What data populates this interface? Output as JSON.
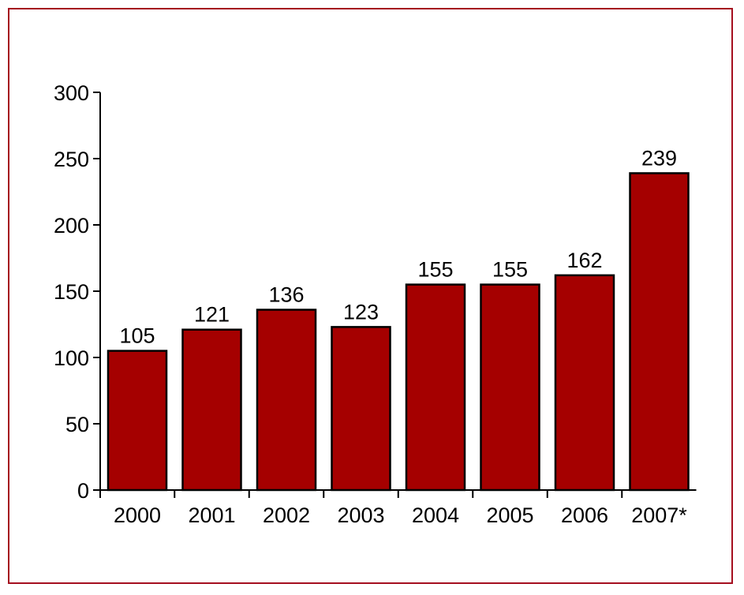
{
  "chart_data": {
    "type": "bar",
    "categories": [
      "2000",
      "2001",
      "2002",
      "2003",
      "2004",
      "2005",
      "2006",
      "2007*"
    ],
    "values": [
      105,
      121,
      136,
      123,
      155,
      155,
      162,
      239
    ],
    "value_labels": [
      "105",
      "121",
      "136",
      "123",
      "155",
      "155",
      "162",
      "239"
    ],
    "ylim": [
      0,
      300
    ],
    "yticks": [
      0,
      50,
      100,
      150,
      200,
      250,
      300
    ],
    "ytick_labels": [
      "0",
      "50",
      "100",
      "150",
      "200",
      "250",
      "300"
    ],
    "grid": false,
    "legend": "none",
    "bar_color": "#a50000",
    "bar_edge_color": "#000000",
    "frame_color": "#a50f1f"
  }
}
